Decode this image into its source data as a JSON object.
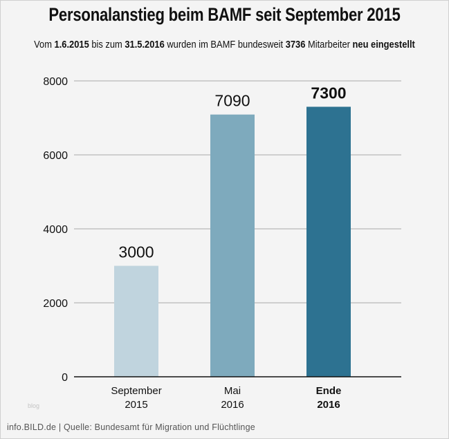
{
  "title": "Personalanstieg beim BAMF seit September 2015",
  "subtitle": {
    "parts": [
      {
        "text": "Vom ",
        "bold": false
      },
      {
        "text": "1.6.2015",
        "bold": true
      },
      {
        "text": " bis zum ",
        "bold": false
      },
      {
        "text": "31.5.2016",
        "bold": true
      },
      {
        "text": " wurden im BAMF bundesweit ",
        "bold": false
      },
      {
        "text": "3736",
        "bold": true
      },
      {
        "text": " Mitarbeiter ",
        "bold": false
      },
      {
        "text": "neu eingestellt",
        "bold": true
      }
    ]
  },
  "footer": "info.BILD.de | Quelle: Bundesamt für Migration und Flüchtlinge",
  "watermark": "blog",
  "chart_data": {
    "type": "bar",
    "categories": [
      [
        "September",
        "2015"
      ],
      [
        "Mai",
        "2016"
      ],
      [
        "Ende",
        "2016"
      ]
    ],
    "values": [
      3000,
      7090,
      7300
    ],
    "data_labels": [
      "3000",
      "7090",
      "7300"
    ],
    "highlight": [
      false,
      false,
      true
    ],
    "colors": [
      "#c0d4de",
      "#7eaabd",
      "#2d7291"
    ],
    "ylim": [
      0,
      8000
    ],
    "yticks": [
      0,
      2000,
      4000,
      6000,
      8000
    ],
    "grid": true,
    "xlabel": "",
    "ylabel": ""
  }
}
